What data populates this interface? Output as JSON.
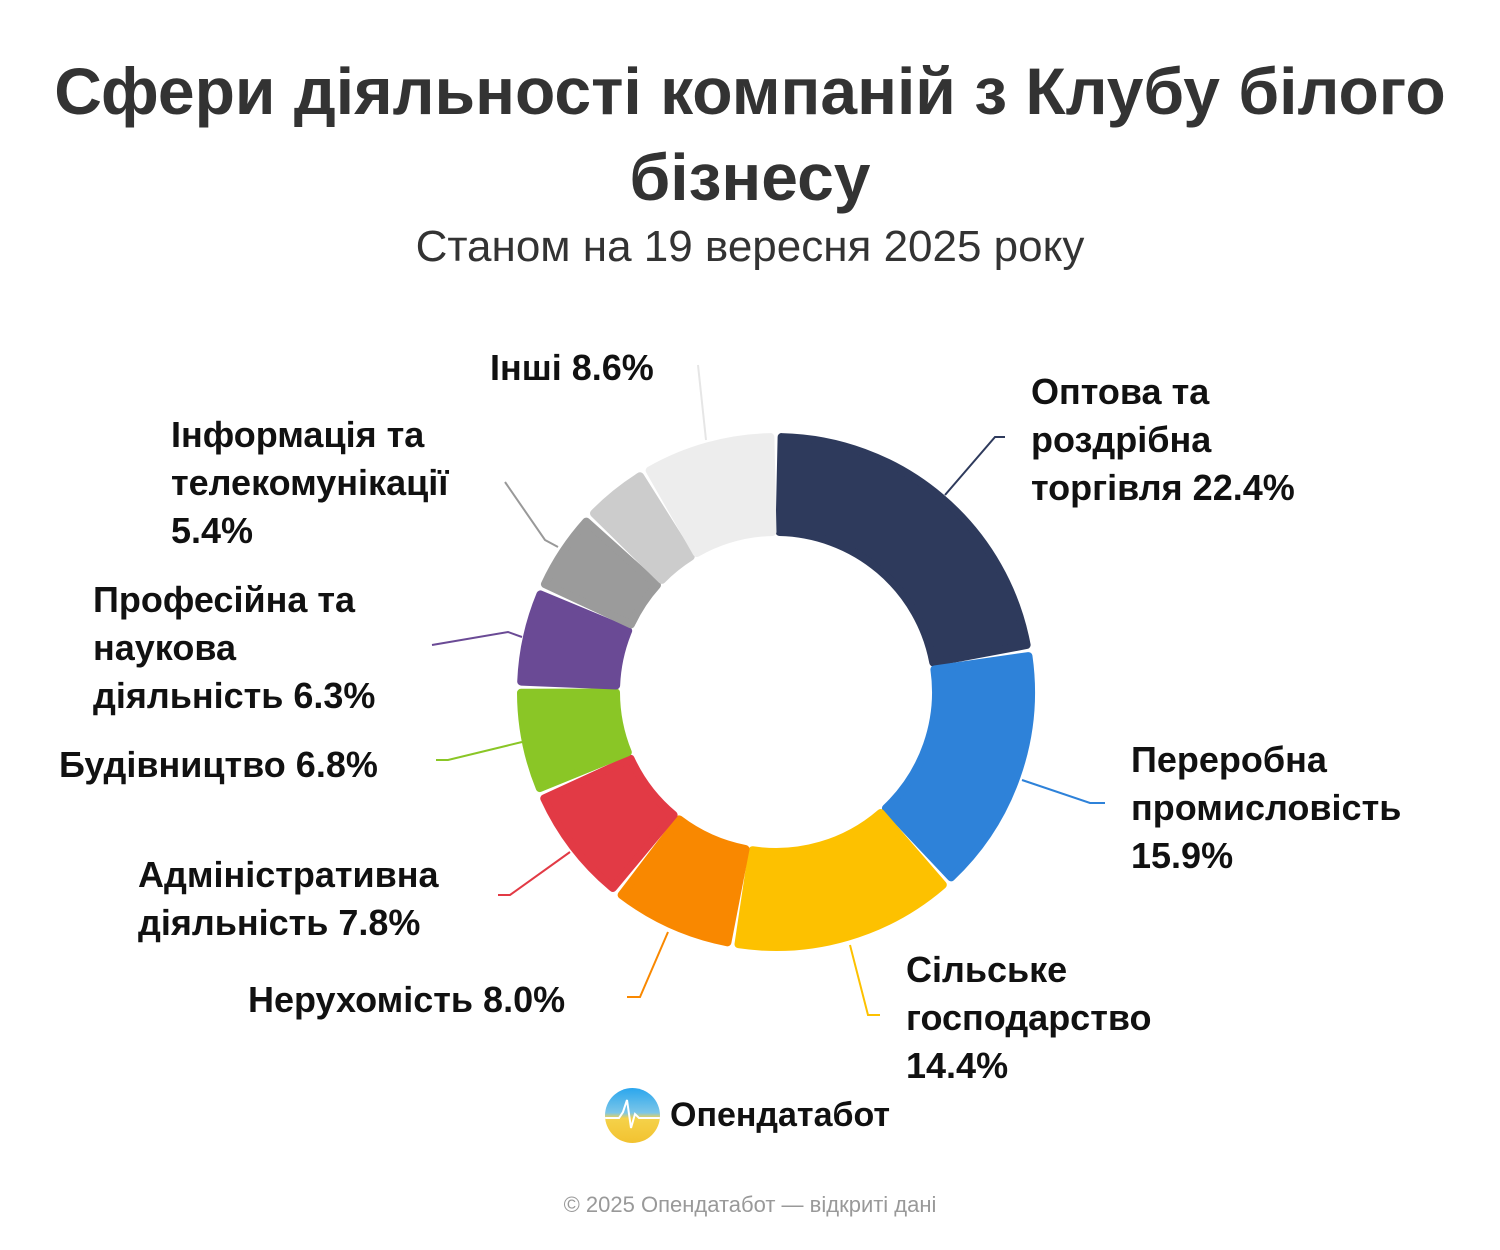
{
  "chart_data": {
    "type": "pie",
    "variant": "donut",
    "title": "Сфери діяльності компаній з Клубу білого бізнесу",
    "subtitle": "Станом на 19 вересня 2025 року",
    "slices": [
      {
        "label": "Оптова та\nроздрібна\nторгівля 22.4%",
        "value": 22.4,
        "color": "#2e3a5c"
      },
      {
        "label": "Переробна\nпромисловість\n15.9%",
        "value": 15.9,
        "color": "#2e82d9"
      },
      {
        "label": "Сільське\nгосподарство\n14.4%",
        "value": 14.4,
        "color": "#fdc100"
      },
      {
        "label": "Нерухомість 8.0%",
        "value": 8.0,
        "color": "#f98800"
      },
      {
        "label": "Адміністративна\nдіяльність 7.8%",
        "value": 7.8,
        "color": "#e23a45"
      },
      {
        "label": "Будівництво 6.8%",
        "value": 6.8,
        "color": "#8ac626"
      },
      {
        "label": "Професійна та\nнаукова\nдіяльність 6.3%",
        "value": 6.3,
        "color": "#6a4a95"
      },
      {
        "label": "Інформація та\nтелекомунікації\n5.4%",
        "value": 5.4,
        "color": "#9b9b9b"
      },
      {
        "label": "",
        "value": 4.4,
        "color": "#cccccc"
      },
      {
        "label": "Інші 8.6%",
        "value": 8.6,
        "color": "#ededed"
      }
    ]
  },
  "branding": {
    "logo_text": "Опендатабот",
    "footer": "© 2025 Опендатабот — відкриті дані"
  }
}
